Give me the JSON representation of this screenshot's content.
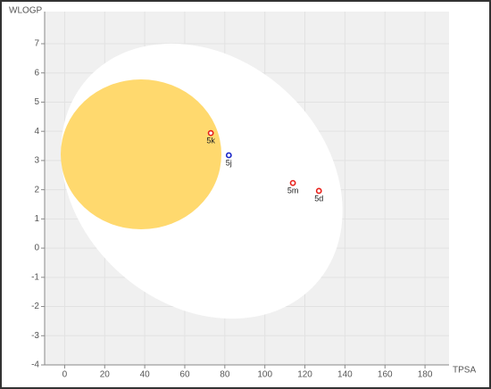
{
  "chart_data": {
    "type": "scatter",
    "xlabel": "TPSA",
    "ylabel": "WLOGP",
    "xlim": [
      -10,
      192
    ],
    "ylim": [
      -4,
      8.1
    ],
    "xticks": [
      0,
      20,
      40,
      60,
      80,
      100,
      120,
      140,
      160,
      180
    ],
    "yticks": [
      -4,
      -3,
      -2,
      -1,
      0,
      1,
      2,
      3,
      4,
      5,
      6,
      7
    ],
    "grid": true,
    "points": [
      {
        "label": "5k",
        "x": 73,
        "y": 3.94,
        "color": "#e8201a"
      },
      {
        "label": "5j",
        "x": 82,
        "y": 3.18,
        "color": "#1a26c8"
      },
      {
        "label": "5m",
        "x": 114,
        "y": 2.23,
        "color": "#e8201a"
      },
      {
        "label": "5d",
        "x": 127,
        "y": 1.96,
        "color": "#e8201a"
      }
    ]
  }
}
